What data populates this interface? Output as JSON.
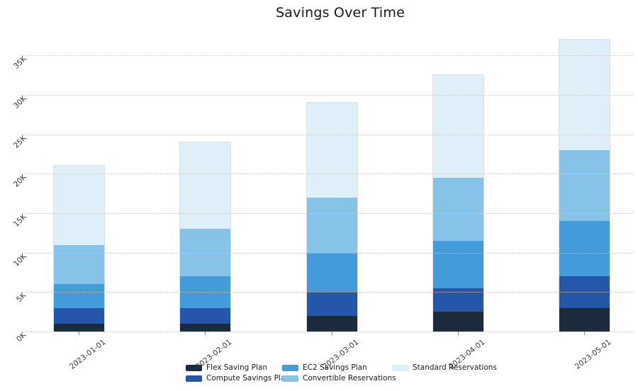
{
  "chart_data": {
    "type": "bar",
    "stacked": true,
    "title": "Savings Over Time",
    "xlabel": "",
    "ylabel": "",
    "categories": [
      "2023-01-01",
      "2023-02-01",
      "2023-03-01",
      "2023-04-01",
      "2023-05-01"
    ],
    "series": [
      {
        "name": "Flex Saving Plan",
        "color": "#1c2a3d",
        "values": [
          1000,
          1000,
          2000,
          2500,
          3000
        ]
      },
      {
        "name": "Compute Savings Plan",
        "color": "#2457a7",
        "values": [
          2000,
          2000,
          3000,
          3000,
          4000
        ]
      },
      {
        "name": "EC2 Savings Plan",
        "color": "#449bda",
        "values": [
          3000,
          4000,
          5000,
          6000,
          7000
        ]
      },
      {
        "name": "Convertible Reservations",
        "color": "#87c3e7",
        "values": [
          5000,
          6000,
          7000,
          8000,
          9000
        ]
      },
      {
        "name": "Standard Reservations",
        "color": "#deeffa",
        "values": [
          10000,
          11000,
          12000,
          13000,
          14000
        ]
      }
    ],
    "stack_totals": [
      21000,
      24000,
      29000,
      32500,
      37000
    ],
    "yticks": [
      "0K",
      "5K",
      "10K",
      "15K",
      "20K",
      "25K",
      "30K",
      "35K"
    ],
    "ytick_values": [
      0,
      5000,
      10000,
      15000,
      20000,
      25000,
      30000,
      35000
    ],
    "ylim": [
      0,
      37500
    ],
    "grid": "horizontal-dotted",
    "grid_color": "#c9c9c9",
    "tick_label_color": "#3a3a3a",
    "title_color": "#1a1a1a",
    "legend_position": "bottom",
    "legend_columns": 3,
    "legend_order": "column-major"
  }
}
